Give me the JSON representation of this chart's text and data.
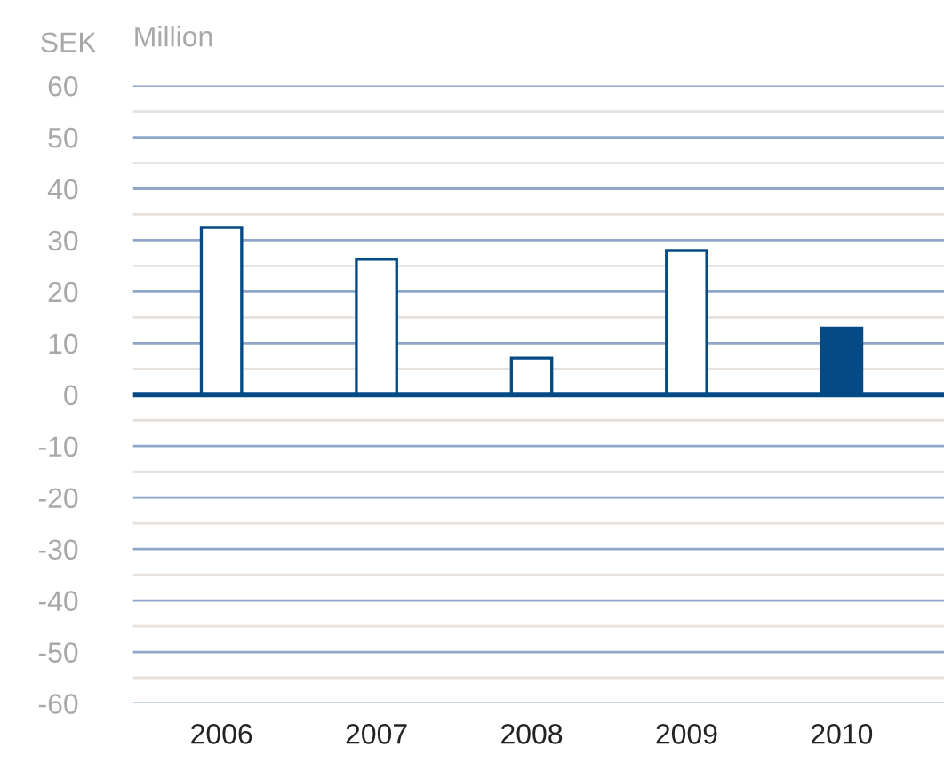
{
  "chart_data": {
    "type": "bar",
    "title": "Million",
    "ylabel": "SEK",
    "categories": [
      "2006",
      "2007",
      "2008",
      "2009",
      "2010"
    ],
    "values": [
      32.5,
      26.3,
      7.1,
      28.0,
      12.9
    ],
    "color": "#044a84",
    "colors": [
      "#ffffff",
      "#ffffff",
      "#ffffff",
      "#ffffff",
      "#044a84"
    ],
    "ylim": [
      -60,
      60
    ],
    "yticks": [
      -60,
      -50,
      -40,
      -30,
      -20,
      -10,
      0,
      10,
      20,
      30,
      40,
      50,
      60
    ],
    "ref_lines": [
      {
        "axis": "y",
        "value": 0,
        "color": "#044a84"
      }
    ],
    "grid": "y",
    "legend": false
  }
}
